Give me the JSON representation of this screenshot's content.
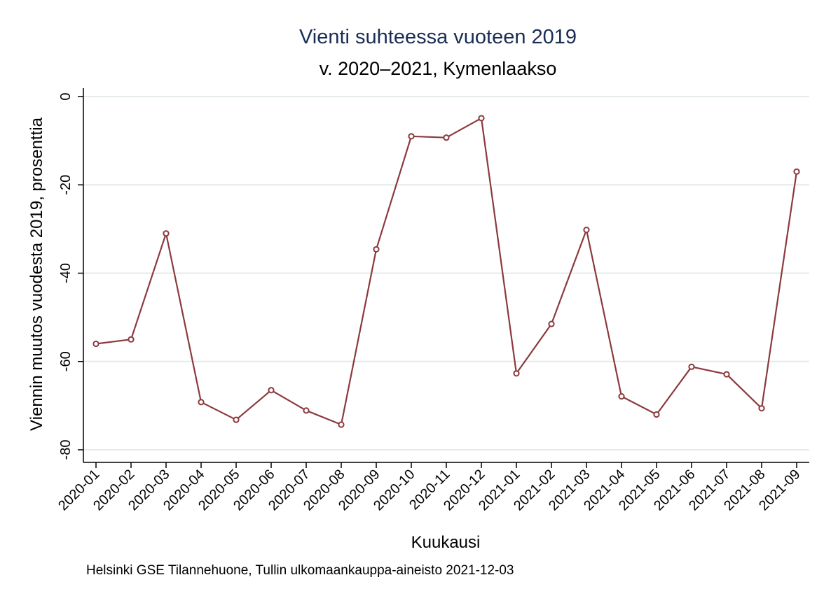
{
  "chart_data": {
    "type": "line",
    "title": "Vienti suhteessa vuoteen 2019",
    "subtitle": "v. 2020–2021, Kymenlaakso",
    "xlabel": "Kuukausi",
    "ylabel": "Viennin muutos vuodesta 2019, prosenttia",
    "note": "Helsinki GSE Tilannehuone, Tullin ulkomaankauppa-aineisto 2021-12-03",
    "categories": [
      "2020-01",
      "2020-02",
      "2020-03",
      "2020-04",
      "2020-05",
      "2020-06",
      "2020-07",
      "2020-08",
      "2020-09",
      "2020-10",
      "2020-11",
      "2020-12",
      "2021-01",
      "2021-02",
      "2021-03",
      "2021-04",
      "2021-05",
      "2021-06",
      "2021-07",
      "2021-08",
      "2021-09"
    ],
    "series": [
      {
        "values": [
          -56,
          -55,
          -31,
          -69.2,
          -73.2,
          -66.5,
          -71.1,
          -74.3,
          -34.6,
          -9,
          -9.3,
          -4.9,
          -62.7,
          -51.5,
          -30.2,
          -67.9,
          -72,
          -61.2,
          -62.9,
          -70.6,
          -17
        ]
      }
    ],
    "yticks": [
      0,
      -20,
      -40,
      -60,
      -80
    ],
    "ylim": [
      -83,
      3
    ],
    "grid": true,
    "colors": {
      "line": "#8b3a3e",
      "grid": "#e4ebea",
      "title": "#1a2d55"
    }
  }
}
